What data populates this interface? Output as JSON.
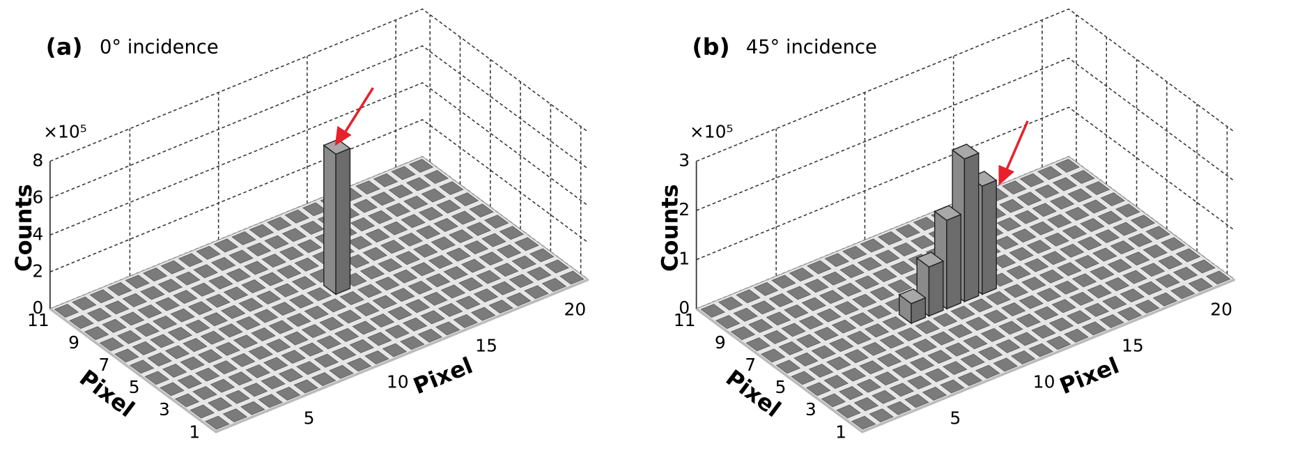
{
  "chart_data": [
    {
      "type": "bar3d",
      "title": "(a)",
      "subtitle": "0° incidence",
      "zlabel": "Counts",
      "xlabel": "Pixel",
      "ylabel": "Pixel",
      "zmultiplier": "×10⁵",
      "xlim": [
        1,
        21
      ],
      "ylim": [
        1,
        11
      ],
      "zlim": [
        0,
        8
      ],
      "xticks": [
        5,
        10,
        15,
        20
      ],
      "yticks": [
        1,
        3,
        5,
        7,
        9,
        11
      ],
      "zticks": [
        0,
        2,
        4,
        6,
        8
      ],
      "x": [
        12
      ],
      "y": [
        6
      ],
      "values": [
        7.6
      ],
      "color": "#8a8a8a",
      "grid": true
    },
    {
      "type": "bar3d",
      "title": "(b)",
      "subtitle": "45° incidence",
      "zlabel": "Counts",
      "xlabel": "Pixel",
      "ylabel": "Pixel",
      "zmultiplier": "×10⁵",
      "xlim": [
        1,
        21
      ],
      "ylim": [
        1,
        11
      ],
      "zlim": [
        0,
        3
      ],
      "xticks": [
        5,
        10,
        15,
        20
      ],
      "yticks": [
        1,
        3,
        5,
        7,
        9,
        11
      ],
      "zticks": [
        0,
        1,
        2,
        3
      ],
      "x": [
        8,
        9,
        10,
        11,
        12
      ],
      "y": [
        6,
        6,
        6,
        6,
        6
      ],
      "values": [
        0.4,
        1.0,
        1.8,
        2.9,
        2.2
      ],
      "color": "#8a8a8a",
      "grid": true
    }
  ]
}
